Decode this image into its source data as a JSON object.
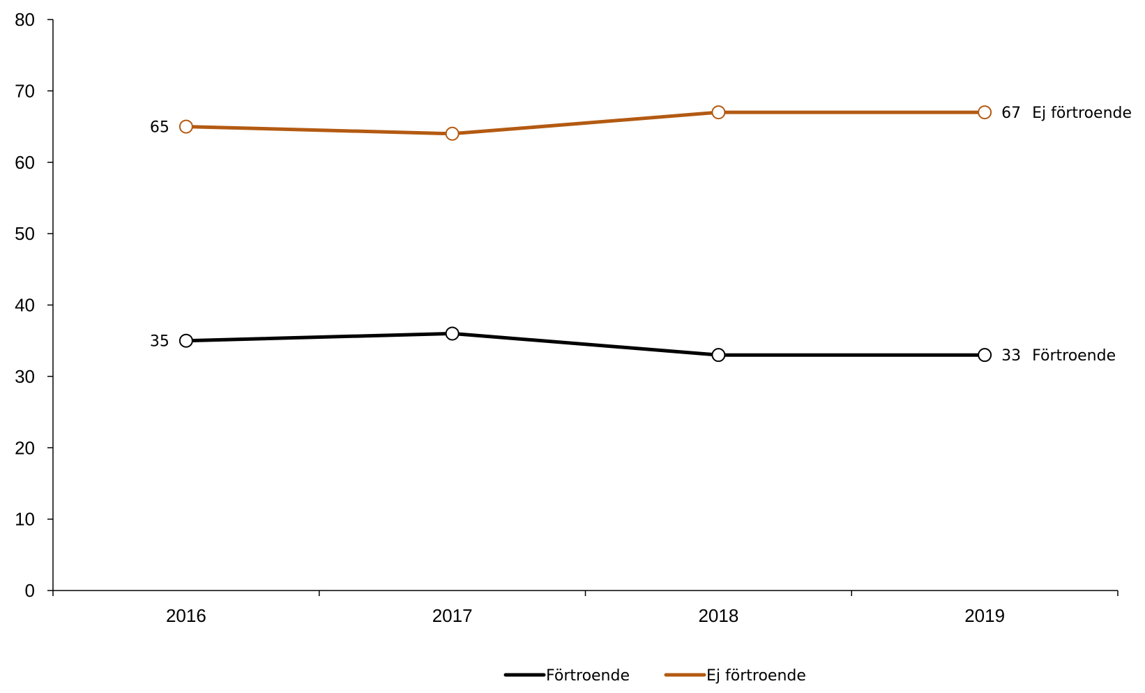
{
  "chart_data": {
    "type": "line",
    "title": "",
    "xlabel": "",
    "ylabel": "",
    "categories": [
      "2016",
      "2017",
      "2018",
      "2019"
    ],
    "ylim": [
      0,
      80
    ],
    "yticks": [
      0,
      10,
      20,
      30,
      40,
      50,
      60,
      70,
      80
    ],
    "grid": false,
    "legend_position": "bottom-center",
    "series": [
      {
        "name": "Förtroende",
        "values": [
          35,
          36,
          33,
          33
        ],
        "color": "#000000",
        "labels": {
          "0": "35",
          "3": "33"
        },
        "end_label": "Förtroende"
      },
      {
        "name": "Ej förtroende",
        "values": [
          65,
          64,
          67,
          67
        ],
        "color": "#B35A12",
        "labels": {
          "0": "65",
          "3": "67"
        },
        "end_label": "Ej förtroende"
      }
    ]
  }
}
